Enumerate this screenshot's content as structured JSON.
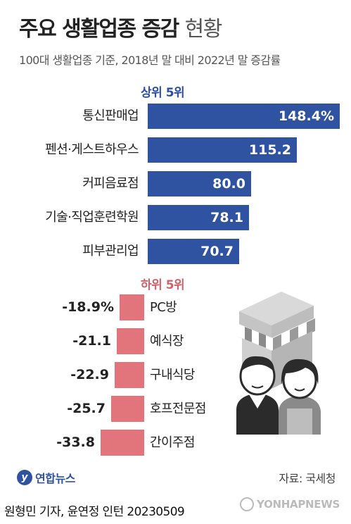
{
  "header": {
    "title_bold": "주요 생활업종 증감",
    "title_light": "현황",
    "subtitle": "100대 생활업종 기준, 2018년 말 대비 2022년 말 증감률"
  },
  "chart_data": [
    {
      "type": "bar",
      "orientation": "horizontal",
      "title": "상위 5위",
      "categories": [
        "통신판매업",
        "펜션·게스트하우스",
        "커피음료점",
        "기술·직업훈련학원",
        "피부관리업"
      ],
      "values": [
        148.4,
        115.2,
        80.0,
        78.1,
        70.7
      ],
      "value_labels": [
        "148.4%",
        "115.2",
        "80.0",
        "78.1",
        "70.7"
      ],
      "color": "#2f53a1"
    },
    {
      "type": "bar",
      "orientation": "horizontal",
      "title": "하위 5위",
      "categories": [
        "PC방",
        "예식장",
        "구내식당",
        "호프전문점",
        "간이주점"
      ],
      "values": [
        -18.9,
        -21.1,
        -22.9,
        -25.7,
        -33.8
      ],
      "value_labels": [
        "-18.9%",
        "-21.1",
        "-22.9",
        "-25.7",
        "-33.8"
      ],
      "color": "#e2747c"
    }
  ],
  "footer": {
    "logo_text": "연합뉴스",
    "source": "자료: 국세청",
    "credit": "원형민 기자, 윤연정 인턴  20230509",
    "watermark": "YONHAPNEWS"
  }
}
